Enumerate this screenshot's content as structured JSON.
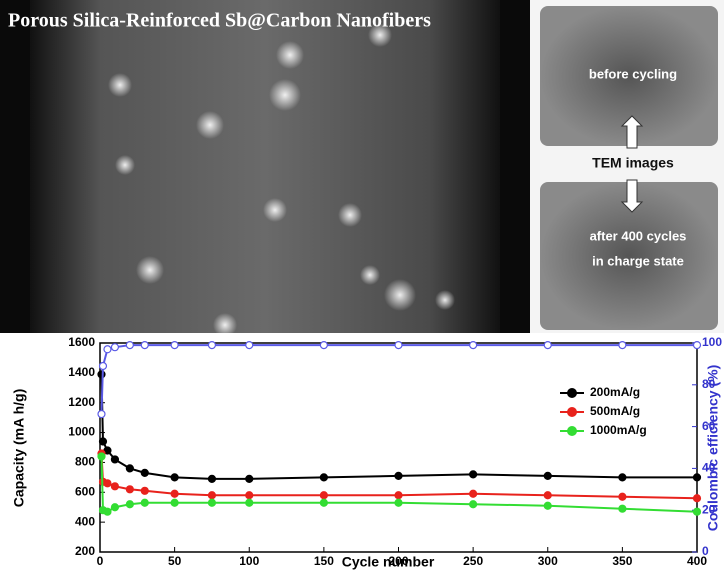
{
  "images": {
    "title": "Porous Silica-Reinforced Sb@Carbon Nanofibers",
    "top_label": "before cycling",
    "middle_label": "TEM images",
    "bottom_label_1": "after 400 cycles",
    "bottom_label_2": "in charge state"
  },
  "chart_data": {
    "type": "line",
    "x_label": "Cycle number",
    "y_label": "Capacity (mA h/g)",
    "y2_label": "Coulombic efficiency (%)",
    "x": [
      1,
      2,
      5,
      10,
      20,
      30,
      50,
      75,
      100,
      150,
      200,
      250,
      300,
      350,
      400
    ],
    "series": [
      {
        "name": "200mA/g",
        "color": "#000000",
        "values": [
          1390,
          940,
          880,
          820,
          760,
          730,
          700,
          690,
          690,
          700,
          710,
          720,
          710,
          700,
          700
        ]
      },
      {
        "name": "500mA/g",
        "color": "#e8221c",
        "values": [
          860,
          670,
          660,
          640,
          620,
          610,
          590,
          580,
          580,
          580,
          580,
          590,
          580,
          570,
          560
        ]
      },
      {
        "name": "1000mA/g",
        "color": "#33dd33",
        "values": [
          840,
          480,
          470,
          500,
          520,
          530,
          530,
          530,
          530,
          530,
          530,
          520,
          510,
          490,
          470
        ]
      },
      {
        "color": "#5a5ae6",
        "axis": "y2",
        "values": [
          66,
          89,
          97,
          98,
          99,
          99,
          99,
          99,
          99,
          99,
          99,
          99,
          99,
          99,
          99
        ]
      }
    ],
    "xlim": [
      0,
      400
    ],
    "xticks": [
      0,
      50,
      100,
      150,
      200,
      250,
      300,
      350,
      400
    ],
    "ylim": [
      200,
      1600
    ],
    "yticks": [
      200,
      400,
      600,
      800,
      1000,
      1200,
      1400,
      1600
    ],
    "y2lim": [
      0,
      100
    ],
    "y2ticks": [
      0,
      20,
      40,
      60,
      80,
      100
    ],
    "legend": "right"
  }
}
